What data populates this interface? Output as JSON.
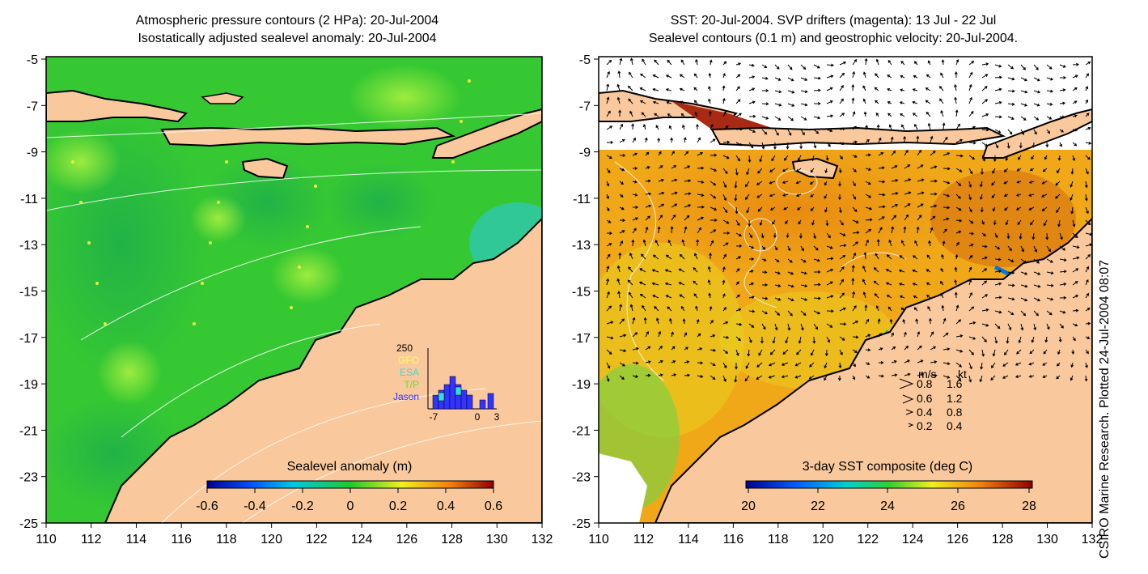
{
  "left_panel": {
    "title_line1": "Atmospheric pressure contours (2 HPa): 20-Jul-2004",
    "title_line2": "Isostatically adjusted sealevel anomaly: 20-Jul-2004",
    "colorbar_label": "Sealevel anomaly (m)",
    "colorbar_ticks": [
      "-0.6",
      "-0.4",
      "-0.2",
      "0",
      "0.2",
      "0.4",
      "0.6"
    ],
    "inset": {
      "max_label": "250",
      "legend": [
        {
          "label": "GFO",
          "color": "#ffff66"
        },
        {
          "label": "ESA",
          "color": "#33dddd"
        },
        {
          "label": "T/P",
          "color": "#66dd33"
        },
        {
          "label": "Jason",
          "color": "#3333ff"
        }
      ],
      "x_ticks": [
        "-7",
        "0",
        "3"
      ]
    }
  },
  "right_panel": {
    "title_line1": "SST: 20-Jul-2004. SVP drifters (magenta): 13 Jul - 22 Jul",
    "title_line2": "Sealevel contours (0.1 m) and geostrophic velocity: 20-Jul-2004.",
    "colorbar_label": "3-day SST composite (deg C)",
    "colorbar_ticks": [
      "20",
      "22",
      "24",
      "26",
      "28"
    ],
    "speed_legend": {
      "header_ms": "m/s",
      "header_kt": "kt",
      "rows": [
        {
          "ms": "0.8",
          "kt": "1.6"
        },
        {
          "ms": "0.6",
          "kt": "1.2"
        },
        {
          "ms": "0.4",
          "kt": "0.8"
        },
        {
          "ms": "0.2",
          "kt": "0.4"
        }
      ]
    }
  },
  "axes": {
    "y_ticks": [
      "-5",
      "-7",
      "-9",
      "-11",
      "-13",
      "-15",
      "-17",
      "-19",
      "-21",
      "-23",
      "-25"
    ],
    "x_ticks": [
      "110",
      "112",
      "114",
      "116",
      "118",
      "120",
      "122",
      "124",
      "126",
      "128",
      "130",
      "132"
    ]
  },
  "credit": "CSIRO Marine Research. Plotted 24-Jul-2004 08:07",
  "colors": {
    "land": "#f9c89c",
    "sla_ocean": "#33c833",
    "sst_ocean": "#f0a010",
    "contour": "#ffffff",
    "coast": "#000000"
  }
}
